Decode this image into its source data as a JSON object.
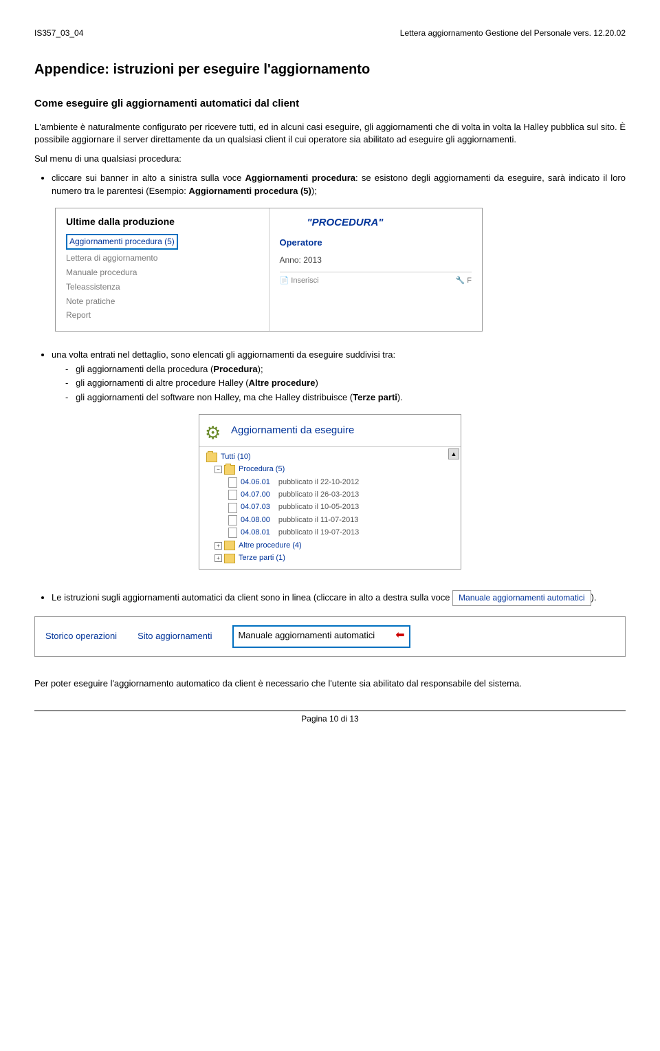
{
  "header": {
    "left": "IS357_03_04",
    "right": "Lettera aggiornamento Gestione del Personale vers. 12.20.02"
  },
  "title": "Appendice: istruzioni per eseguire l'aggiornamento",
  "subtitle": "Come eseguire gli aggiornamenti automatici dal client",
  "intro1": "L'ambiente è naturalmente configurato per ricevere tutti, ed in alcuni casi eseguire, gli aggiornamenti che di volta in volta la Halley pubblica sul sito. È possibile aggiornare il server direttamente da un qualsiasi client il cui operatore sia abilitato ad eseguire gli aggiornamenti.",
  "intro2": "Sul menu di una qualsiasi procedura:",
  "bullet1_a": "cliccare sui banner in alto a sinistra sulla voce ",
  "bullet1_b": "Aggiornamenti procedura",
  "bullet1_c": ": se esistono degli aggiornamenti da eseguire, sarà indicato il loro numero tra le parentesi (Esempio: ",
  "bullet1_d": "Aggiornamenti procedura (5)",
  "bullet1_e": ");",
  "screenshot1": {
    "left_title": "Ultime dalla produzione",
    "highlight": "Aggiornamenti procedura (5)",
    "links": [
      "Lettera di aggiornamento",
      "Manuale procedura",
      "Teleassistenza",
      "Note pratiche",
      "Report"
    ],
    "right_proc": "\"PROCEDURA\"",
    "right_op": "Operatore",
    "right_year": "Anno: 2013",
    "right_insert": "Inserisci",
    "right_flag": "F"
  },
  "bullet2": "una volta entrati nel dettaglio, sono elencati gli aggiornamenti da eseguire suddivisi tra:",
  "sub2": {
    "a": "gli aggiornamenti della procedura (",
    "a_b": "Procedura",
    "a_c": ");",
    "b": "gli aggiornamenti di altre procedure Halley (",
    "b_b": "Altre procedure",
    "b_c": ")",
    "c": "gli aggiornamenti del software non Halley, ma che Halley distribuisce (",
    "c_b": "Terze parti",
    "c_c": ")."
  },
  "screenshot2": {
    "title": "Aggiornamenti da eseguire",
    "root": "Tutti (10)",
    "folder1": "Procedura (5)",
    "items1": [
      {
        "v": "04.06.01",
        "d": "pubblicato il 22-10-2012"
      },
      {
        "v": "04.07.00",
        "d": "pubblicato il 26-03-2013"
      },
      {
        "v": "04.07.03",
        "d": "pubblicato il 10-05-2013"
      },
      {
        "v": "04.08.00",
        "d": "pubblicato il 11-07-2013"
      },
      {
        "v": "04.08.01",
        "d": "pubblicato il 19-07-2013"
      }
    ],
    "folder2": "Altre procedure (4)",
    "folder3": "Terze parti (1)"
  },
  "bullet3_a": "Le istruzioni sugli aggiornamenti automatici da client sono in linea (cliccare in alto a destra sulla voce",
  "bullet3_box": "Manuale aggiornamenti automatici",
  "bullet3_b": ").",
  "screenshot3": {
    "link1": "Storico operazioni",
    "link2": "Sito aggiornamenti",
    "link3": "Manuale aggiornamenti automatici"
  },
  "closing": "Per poter eseguire l'aggiornamento automatico da client è necessario che l'utente sia abilitato dal responsabile del sistema.",
  "footer": "Pagina 10 di 13"
}
